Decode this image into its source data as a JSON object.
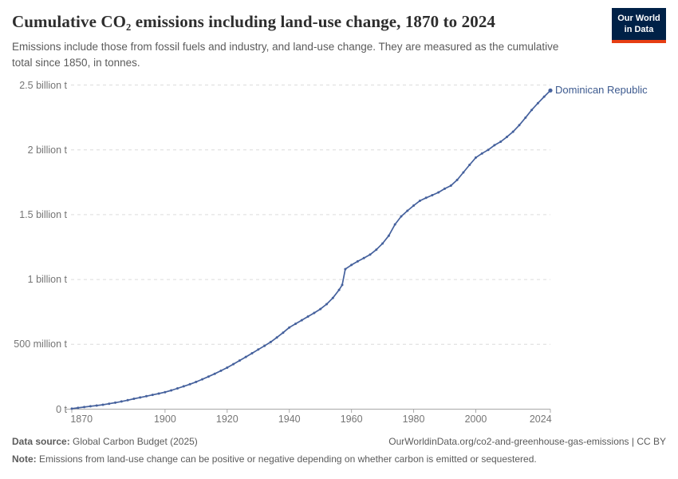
{
  "header": {
    "title": "Cumulative CO₂ emissions including land-use change, 1870 to 2024",
    "subtitle": "Emissions include those from fossil fuels and industry, and land-use change. They are measured as the cumulative total since 1850, in tonnes.",
    "logo_line1": "Our World",
    "logo_line2": "in Data"
  },
  "footer": {
    "data_source_label": "Data source:",
    "data_source_value": " Global Carbon Budget (2025)",
    "link": "OurWorldinData.org/co2-and-greenhouse-gas-emissions | CC BY",
    "note_label": "Note:",
    "note_text": " Emissions from land-use change can be positive or negative depending on whether carbon is emitted or sequestered."
  },
  "colors": {
    "line": "#45619d",
    "entity_label": "#3d5a8f",
    "gridline": "#dcdcdc",
    "axis": "#a8a8a8",
    "tick_text": "#757575"
  },
  "chart_data": {
    "type": "line",
    "title": "Cumulative CO₂ emissions including land-use change, 1870 to 2024",
    "unit": "tonnes",
    "xlabel": "",
    "ylabel": "",
    "xlim": [
      1868,
      2024
    ],
    "ylim_billion_t": [
      0,
      2.5
    ],
    "grid": "dashed-horizontal",
    "legend_position": "end-of-line-label",
    "x_ticks": [
      1870,
      1900,
      1920,
      1940,
      1960,
      1980,
      2000,
      2024
    ],
    "y_ticks": [
      {
        "label": "2.5 billion t",
        "value": 2.5
      },
      {
        "label": "2 billion t",
        "value": 2.0
      },
      {
        "label": "1.5 billion t",
        "value": 1.5
      },
      {
        "label": "1 billion t",
        "value": 1.0
      },
      {
        "label": "500 million t",
        "value": 0.5
      },
      {
        "label": "0 t",
        "value": 0.0
      }
    ],
    "series": [
      {
        "name": "Dominican Republic",
        "unit_note": "values in billion tonnes, estimated from chart",
        "points": [
          [
            1870,
            0.004
          ],
          [
            1872,
            0.01
          ],
          [
            1874,
            0.016
          ],
          [
            1876,
            0.022
          ],
          [
            1878,
            0.028
          ],
          [
            1880,
            0.034
          ],
          [
            1882,
            0.042
          ],
          [
            1884,
            0.05
          ],
          [
            1886,
            0.059
          ],
          [
            1888,
            0.069
          ],
          [
            1890,
            0.08
          ],
          [
            1892,
            0.09
          ],
          [
            1894,
            0.1
          ],
          [
            1896,
            0.11
          ],
          [
            1898,
            0.12
          ],
          [
            1900,
            0.131
          ],
          [
            1902,
            0.145
          ],
          [
            1904,
            0.16
          ],
          [
            1906,
            0.176
          ],
          [
            1908,
            0.192
          ],
          [
            1910,
            0.21
          ],
          [
            1912,
            0.23
          ],
          [
            1914,
            0.251
          ],
          [
            1916,
            0.273
          ],
          [
            1918,
            0.296
          ],
          [
            1920,
            0.32
          ],
          [
            1922,
            0.347
          ],
          [
            1924,
            0.375
          ],
          [
            1926,
            0.403
          ],
          [
            1928,
            0.431
          ],
          [
            1930,
            0.46
          ],
          [
            1932,
            0.488
          ],
          [
            1934,
            0.518
          ],
          [
            1936,
            0.553
          ],
          [
            1938,
            0.59
          ],
          [
            1940,
            0.63
          ],
          [
            1942,
            0.658
          ],
          [
            1944,
            0.686
          ],
          [
            1946,
            0.714
          ],
          [
            1948,
            0.742
          ],
          [
            1950,
            0.772
          ],
          [
            1952,
            0.81
          ],
          [
            1954,
            0.858
          ],
          [
            1956,
            0.92
          ],
          [
            1957,
            0.958
          ],
          [
            1958,
            1.08
          ],
          [
            1960,
            1.112
          ],
          [
            1962,
            1.14
          ],
          [
            1964,
            1.165
          ],
          [
            1966,
            1.192
          ],
          [
            1968,
            1.23
          ],
          [
            1970,
            1.278
          ],
          [
            1972,
            1.338
          ],
          [
            1974,
            1.425
          ],
          [
            1976,
            1.487
          ],
          [
            1978,
            1.53
          ],
          [
            1980,
            1.57
          ],
          [
            1982,
            1.607
          ],
          [
            1984,
            1.63
          ],
          [
            1986,
            1.65
          ],
          [
            1988,
            1.672
          ],
          [
            1990,
            1.7
          ],
          [
            1992,
            1.724
          ],
          [
            1994,
            1.768
          ],
          [
            1996,
            1.826
          ],
          [
            1998,
            1.884
          ],
          [
            2000,
            1.94
          ],
          [
            2002,
            1.972
          ],
          [
            2004,
            2.0
          ],
          [
            2006,
            2.036
          ],
          [
            2008,
            2.063
          ],
          [
            2010,
            2.1
          ],
          [
            2012,
            2.14
          ],
          [
            2014,
            2.19
          ],
          [
            2016,
            2.248
          ],
          [
            2018,
            2.308
          ],
          [
            2020,
            2.36
          ],
          [
            2022,
            2.41
          ],
          [
            2024,
            2.458
          ]
        ]
      }
    ]
  }
}
